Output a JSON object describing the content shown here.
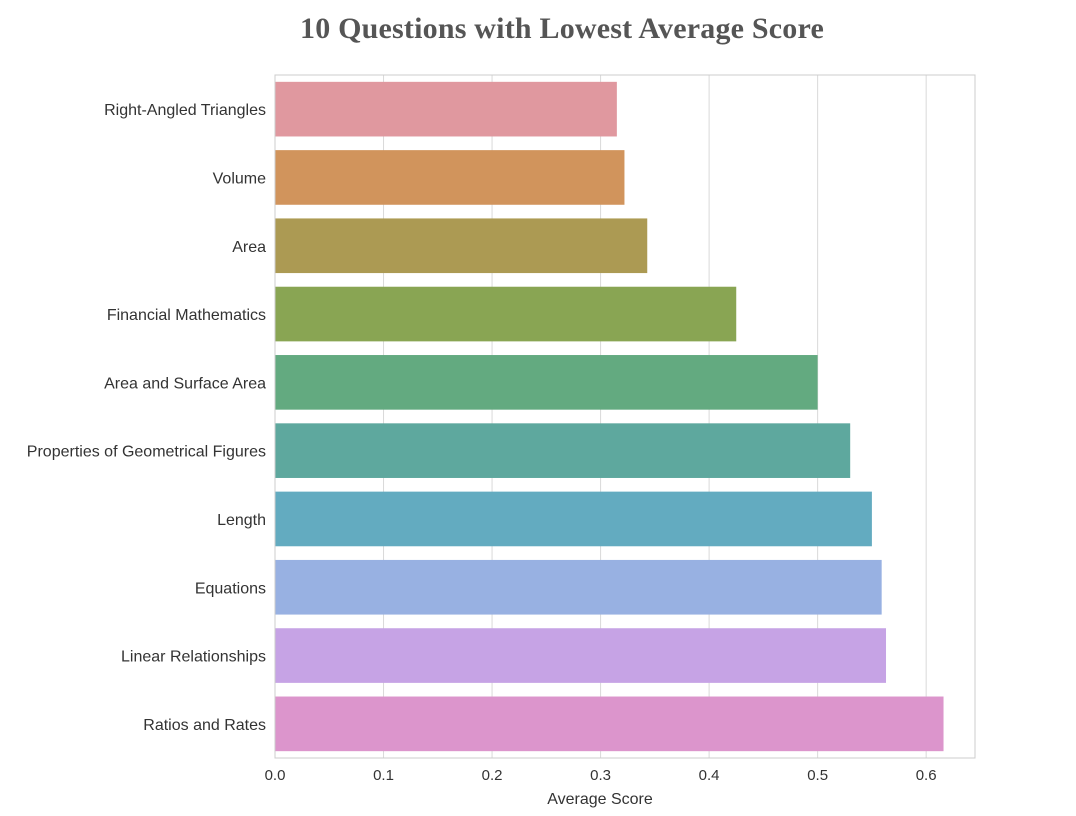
{
  "chart_data": {
    "type": "bar",
    "orientation": "horizontal",
    "title": "10 Questions with Lowest Average Score",
    "xlabel": "Average Score",
    "ylabel": "",
    "categories": [
      "Right-Angled Triangles",
      "Volume",
      "Area",
      "Financial Mathematics",
      "Area and Surface Area",
      "Properties of Geometrical Figures",
      "Length",
      "Equations",
      "Linear Relationships",
      "Ratios and Rates"
    ],
    "values": [
      0.315,
      0.322,
      0.343,
      0.425,
      0.5,
      0.53,
      0.55,
      0.559,
      0.563,
      0.616
    ],
    "colors": [
      "#e0989f",
      "#d1945c",
      "#ac9a53",
      "#89a553",
      "#63aa80",
      "#5ea89e",
      "#63abc0",
      "#98b1e2",
      "#c6a3e5",
      "#dc95cc"
    ],
    "xlim": [
      0,
      0.645
    ],
    "xticks": [
      "0.0",
      "0.1",
      "0.2",
      "0.3",
      "0.4",
      "0.5",
      "0.6"
    ],
    "grid": "vertical",
    "legend": "none"
  }
}
